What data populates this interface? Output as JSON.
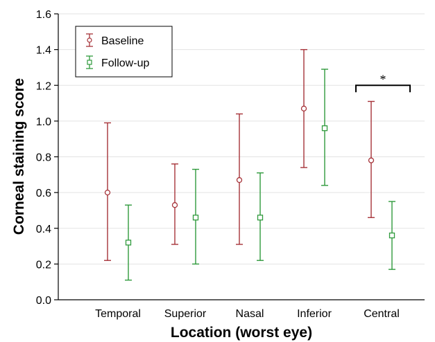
{
  "chart_data": {
    "type": "scatter",
    "title": "",
    "xlabel": "Location (worst eye)",
    "ylabel": "Corneal staining score",
    "ylim": [
      0.0,
      1.6
    ],
    "yticks": [
      "0.0",
      "0.2",
      "0.4",
      "0.6",
      "0.8",
      "1.0",
      "1.2",
      "1.4",
      "1.6"
    ],
    "categories": [
      "Temporal",
      "Superior",
      "Nasal",
      "Inferior",
      "Central"
    ],
    "grid": "horizontal",
    "legend_position": "top-left",
    "series": [
      {
        "name": "Baseline",
        "marker": "circle",
        "color": "#a63238",
        "values": [
          0.6,
          0.53,
          0.67,
          1.07,
          0.78
        ],
        "lower": [
          0.22,
          0.31,
          0.31,
          0.74,
          0.46
        ],
        "upper": [
          0.99,
          0.76,
          1.04,
          1.4,
          1.11
        ]
      },
      {
        "name": "Follow-up",
        "marker": "square",
        "color": "#2f9a3c",
        "values": [
          0.32,
          0.46,
          0.46,
          0.96,
          0.36
        ],
        "lower": [
          0.11,
          0.2,
          0.22,
          0.64,
          0.17
        ],
        "upper": [
          0.53,
          0.73,
          0.71,
          1.29,
          0.55
        ]
      }
    ],
    "annotations": [
      {
        "text": "*",
        "category": "Central",
        "value": 1.2
      }
    ]
  }
}
